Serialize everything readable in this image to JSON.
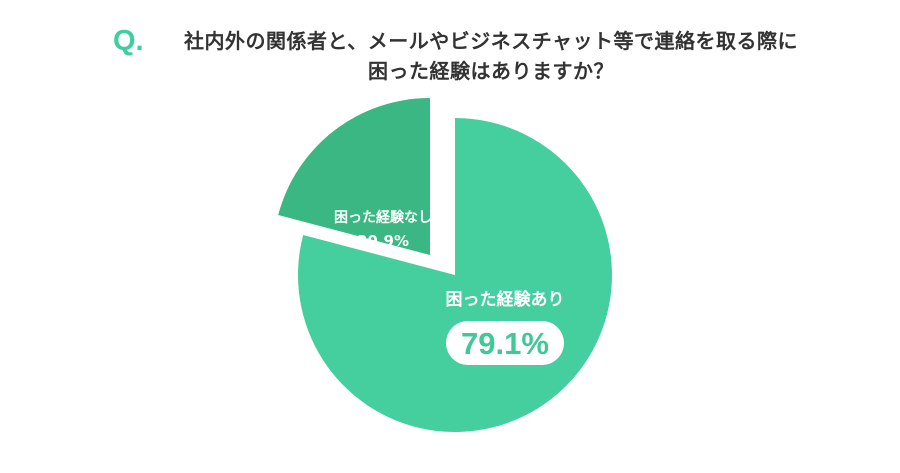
{
  "question": {
    "mark": "Q.",
    "line1": "社内外の関係者と、メールやビジネスチャット等で連絡を取る際に",
    "line2": "困った経験はありますか？"
  },
  "colors": {
    "accent": "#3fce9d",
    "slice_yes": "#45cf9f",
    "slice_no": "#3ab782",
    "badge_text": "#40c896"
  },
  "chart_data": {
    "type": "pie",
    "start_angle_deg": 0,
    "direction": "clockwise",
    "slices": [
      {
        "label": "困った経験あり",
        "value": 79.1,
        "value_label": "79.1%",
        "color": "#45cf9f",
        "exploded": false,
        "highlight": true
      },
      {
        "label": "困った経験なし",
        "value": 20.9,
        "value_label": "20.9%",
        "color": "#3ab782",
        "exploded": true,
        "highlight": false
      }
    ]
  }
}
